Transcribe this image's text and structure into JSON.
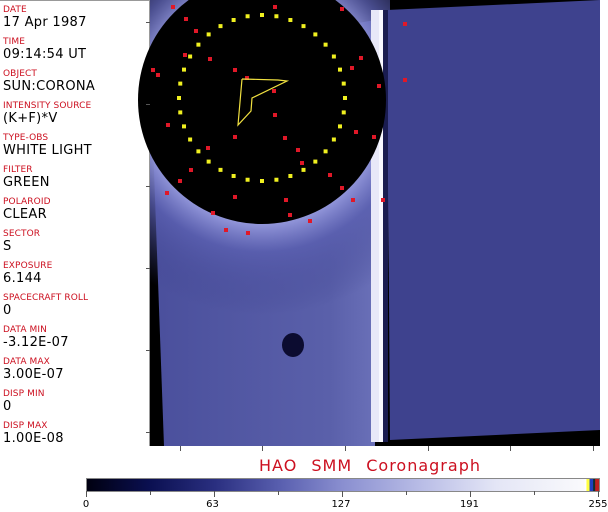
{
  "fields": [
    {
      "label": "DATE",
      "value": "17 Apr 1987"
    },
    {
      "label": "TIME",
      "value": "09:14:54 UT"
    },
    {
      "label": "OBJECT",
      "value": "SUN:CORONA"
    },
    {
      "label": "INTENSITY SOURCE",
      "value": "(K+F)*V"
    },
    {
      "label": "TYPE-OBS",
      "value": "WHITE LIGHT"
    },
    {
      "label": "FILTER",
      "value": "GREEN"
    },
    {
      "label": "POLAROID",
      "value": "CLEAR"
    },
    {
      "label": "SECTOR",
      "value": "S"
    },
    {
      "label": "EXPOSURE",
      "value": "6.144"
    },
    {
      "label": "SPACECRAFT ROLL",
      "value": "0"
    },
    {
      "label": "DATA MIN",
      "value": "-3.12E-07"
    },
    {
      "label": "DATA MAX",
      "value": "3.00E-07"
    },
    {
      "label": "DISP MIN",
      "value": "0"
    },
    {
      "label": "DISP MAX",
      "value": "1.00E-08"
    }
  ],
  "title": "HAO  SMM Coronagraph",
  "colorbar": {
    "ticks": [
      "0",
      "63",
      "127",
      "191",
      "255"
    ],
    "min": 0,
    "max": 255
  },
  "colors": {
    "label": "#cc1020",
    "marker_red": "#e01828",
    "marker_yellow": "#f0f020",
    "background_blue": "#3c408c"
  }
}
